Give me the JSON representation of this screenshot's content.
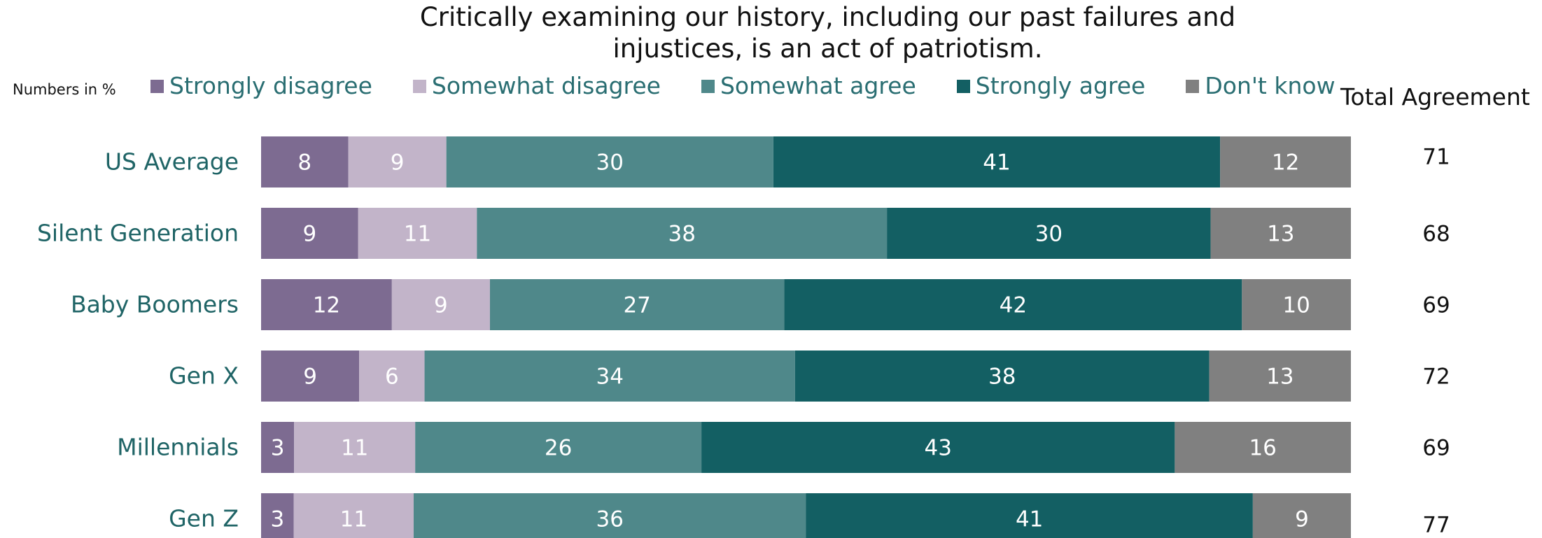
{
  "chart_data": {
    "type": "bar",
    "orientation": "horizontal",
    "stacked": true,
    "title_lines": [
      "Critically examining our history, including our past failures and",
      "injustices, is an act of patriotism."
    ],
    "note": "Numbers in %",
    "total_header": "Total Agreement",
    "categories": [
      "US Average",
      "Silent Generation",
      "Baby Boomers",
      "Gen X",
      "Millennials",
      "Gen Z"
    ],
    "series": [
      {
        "name": "Strongly disagree",
        "color": "#7d6b91",
        "values": [
          8,
          9,
          12,
          9,
          3,
          3
        ]
      },
      {
        "name": "Somewhat disagree",
        "color": "#c2b4c9",
        "values": [
          9,
          11,
          9,
          6,
          11,
          11
        ]
      },
      {
        "name": "Somewhat agree",
        "color": "#4f888a",
        "values": [
          30,
          38,
          27,
          34,
          26,
          36
        ]
      },
      {
        "name": "Strongly agree",
        "color": "#135f63",
        "values": [
          41,
          30,
          42,
          38,
          43,
          41
        ]
      },
      {
        "name": "Don't know",
        "color": "#808080",
        "values": [
          12,
          13,
          10,
          13,
          16,
          9
        ]
      }
    ],
    "total_agreement": [
      71,
      68,
      69,
      72,
      69,
      77
    ],
    "category_label_color": "#1f6466",
    "legend_text_color": "#2a6e72",
    "legend_position": "top",
    "grid": false
  }
}
